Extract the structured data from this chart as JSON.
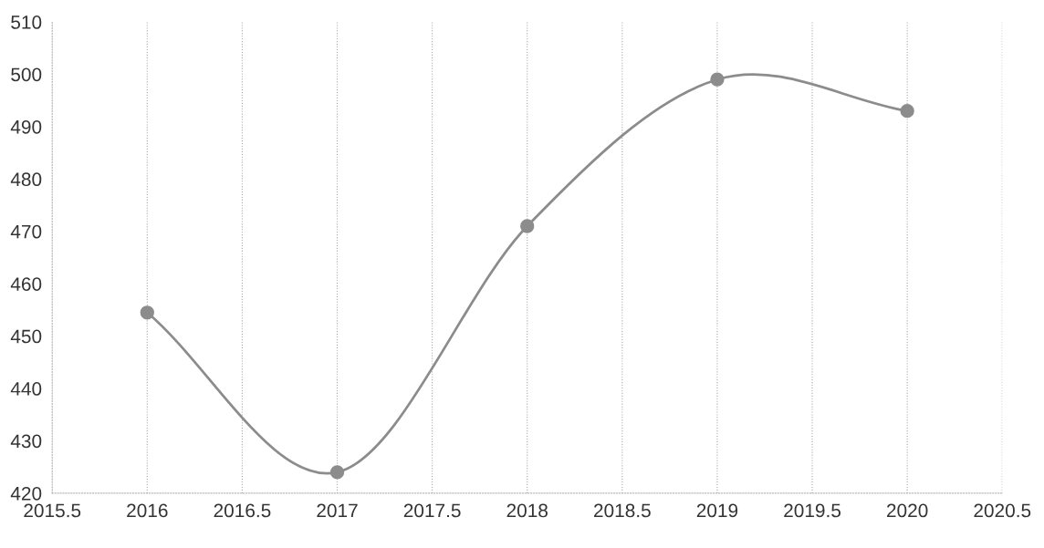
{
  "chart_data": {
    "type": "line",
    "x": [
      2016,
      2017,
      2018,
      2019,
      2020
    ],
    "series": [
      {
        "color": "#8c8c8c",
        "values": [
          454.5,
          424,
          471,
          499,
          493
        ]
      }
    ],
    "xlim": [
      2015.5,
      2020.5
    ],
    "xticks": [
      2015.5,
      2016,
      2016.5,
      2017,
      2017.5,
      2018,
      2018.5,
      2019,
      2019.5,
      2020,
      2020.5
    ],
    "ylim": [
      420,
      510
    ],
    "yticks": [
      420,
      430,
      440,
      450,
      460,
      470,
      480,
      490,
      500,
      510
    ],
    "grid": "x",
    "marker": "circle",
    "line_style": "solid"
  }
}
